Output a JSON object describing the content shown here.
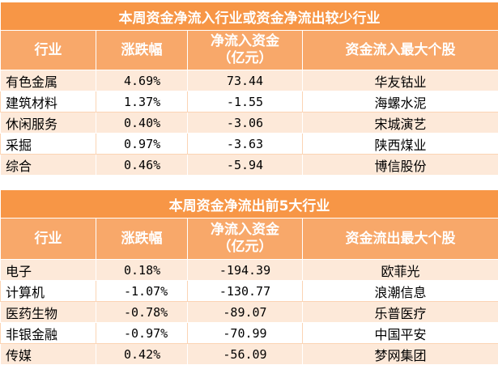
{
  "table1": {
    "title": "本周资金净流入行业或资金净流出较少行业",
    "headers": [
      "行业",
      "涨跌幅",
      "净流入资金\n（亿元）",
      "资金流入最大个股"
    ],
    "rows": [
      {
        "industry": "有色金属",
        "change": "4.69%",
        "flow": "73.44",
        "stock": "华友钴业"
      },
      {
        "industry": "建筑材料",
        "change": "1.37%",
        "flow": "-1.55",
        "stock": "海螺水泥"
      },
      {
        "industry": "休闲服务",
        "change": "0.40%",
        "flow": "-3.06",
        "stock": "宋城演艺"
      },
      {
        "industry": "采掘",
        "change": "0.97%",
        "flow": "-3.63",
        "stock": "陕西煤业"
      },
      {
        "industry": "综合",
        "change": "0.46%",
        "flow": "-5.94",
        "stock": "博信股份"
      }
    ]
  },
  "table2": {
    "title": "本周资金净流出前5大行业",
    "headers": [
      "行业",
      "涨跌幅",
      "净流入资金\n（亿元）",
      "资金流出最大个股"
    ],
    "rows": [
      {
        "industry": "电子",
        "change": "0.18%",
        "flow": "-194.39",
        "stock": "欧菲光"
      },
      {
        "industry": "计算机",
        "change": "-1.07%",
        "flow": "-130.77",
        "stock": "浪潮信息"
      },
      {
        "industry": "医药生物",
        "change": "-0.78%",
        "flow": "-89.07",
        "stock": "乐普医疗"
      },
      {
        "industry": "非银金融",
        "change": "-0.97%",
        "flow": "-70.99",
        "stock": "中国平安"
      },
      {
        "industry": "传媒",
        "change": "0.42%",
        "flow": "-56.09",
        "stock": "梦网集团"
      }
    ]
  }
}
